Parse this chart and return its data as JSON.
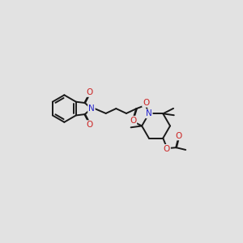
{
  "bg_color": "#e2e2e2",
  "bond_color": "#1a1a1a",
  "bond_width": 1.4,
  "dbo": 0.015,
  "N_color": "#2222cc",
  "O_color": "#cc2222",
  "fs": 7.0,
  "figsize": [
    3.0,
    3.0
  ],
  "dpi": 100,
  "xlim": [
    0,
    10
  ],
  "ylim": [
    0,
    8.5
  ]
}
